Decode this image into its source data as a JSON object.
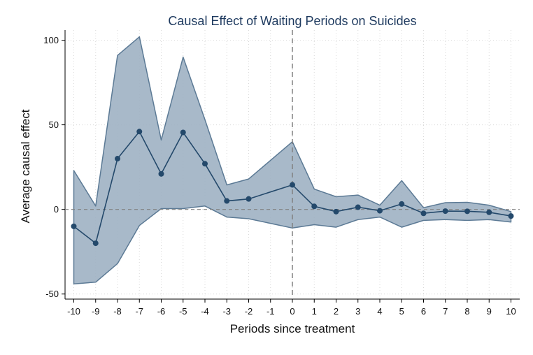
{
  "chart_data": {
    "type": "line",
    "title": "Causal Effect of Waiting Periods on Suicides",
    "xlabel": "Periods since treatment",
    "ylabel": "Average causal effect",
    "x": [
      -10,
      -9,
      -8,
      -7,
      -6,
      -5,
      -4,
      -3,
      -2,
      -1,
      0,
      1,
      2,
      3,
      4,
      5,
      6,
      7,
      8,
      9,
      10
    ],
    "estimate": [
      -10,
      -20,
      30,
      46,
      21,
      45.5,
      27,
      5,
      6.2,
      null,
      14.5,
      1.8,
      -1.3,
      1.3,
      -0.8,
      3.2,
      -2.3,
      -1,
      -1.1,
      -1.7,
      -3.9
    ],
    "ci_upper": [
      23,
      2,
      91,
      102,
      41,
      90,
      53,
      14.5,
      18,
      null,
      40,
      12,
      7.5,
      8.5,
      2.5,
      17,
      1,
      4,
      4.2,
      2.5,
      -1.3
    ],
    "ci_lower": [
      -44,
      -43,
      -32,
      -9.5,
      0.5,
      0.5,
      2,
      -4.5,
      -5.5,
      null,
      -11,
      -9,
      -10.5,
      -6,
      -4.5,
      -10.5,
      -6.5,
      -6,
      -6.5,
      -6,
      -7.5
    ],
    "xlim": [
      -10.4,
      10.4
    ],
    "ylim": [
      -53,
      106
    ],
    "yticks": [
      -50,
      0,
      50,
      100
    ],
    "xticks": [
      -10,
      -9,
      -8,
      -7,
      -6,
      -5,
      -4,
      -3,
      -2,
      -1,
      0,
      1,
      2,
      3,
      4,
      5,
      6,
      7,
      8,
      9,
      10
    ],
    "reference_lines": {
      "y": 0,
      "x": 0
    },
    "grid": true,
    "colors": {
      "band": "#9fb1c3",
      "band_edge": "#5c7a95",
      "line": "#24496b",
      "marker": "#24496b",
      "grid": "#d9d9d9",
      "reference": "#808080"
    }
  }
}
